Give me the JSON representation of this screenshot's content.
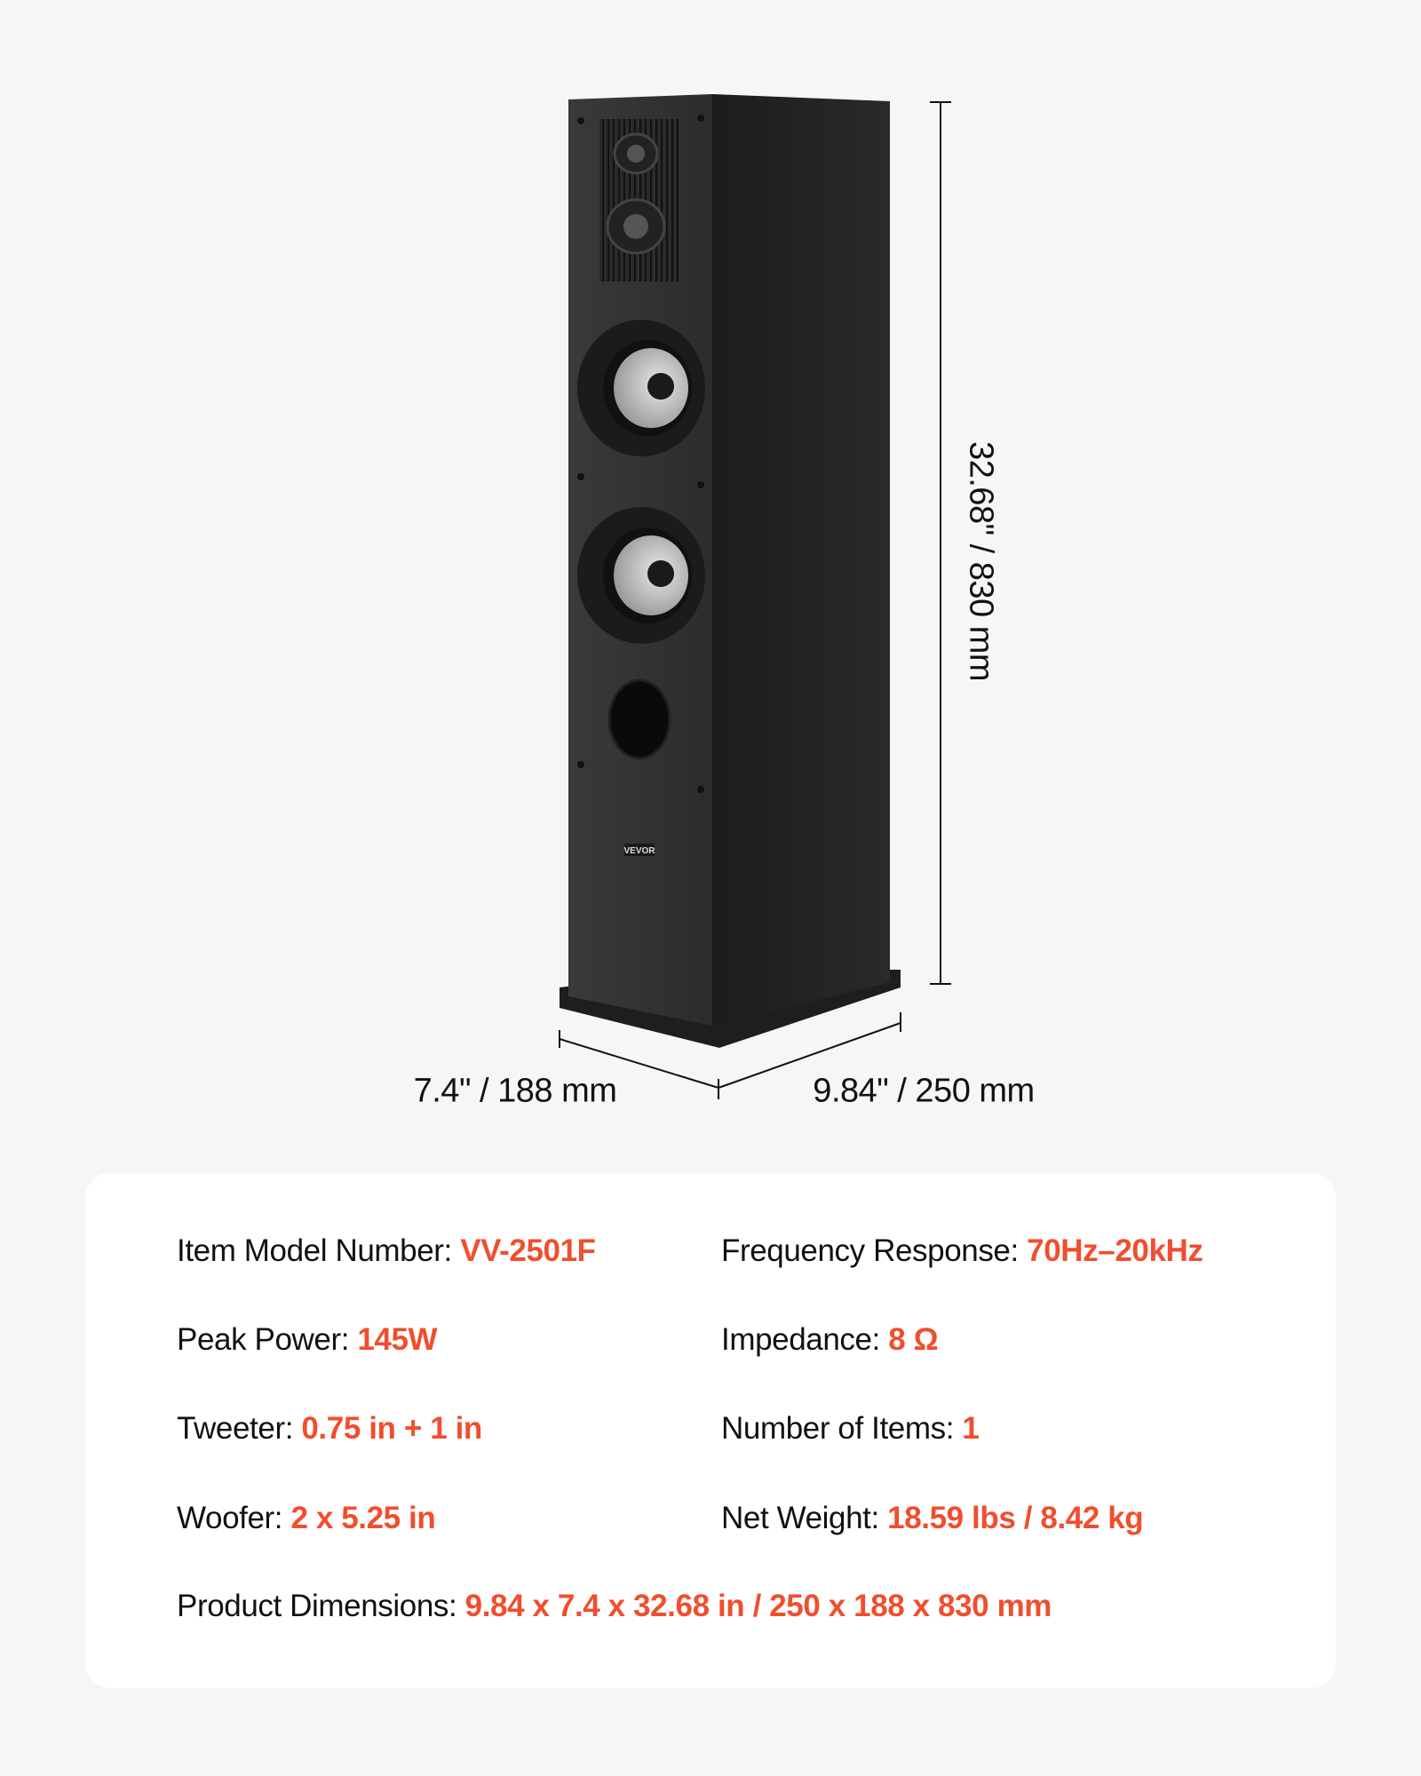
{
  "dimensions": {
    "height": "32.68\" / 830 mm",
    "depth": "7.4\" / 188 mm",
    "width": "9.84\" / 250 mm"
  },
  "brand_logo": "VEVOR",
  "accent_color": "#f04e2e",
  "specs": [
    {
      "label": "Item Model Number: ",
      "value": "VV-2501F"
    },
    {
      "label": "Frequency Response: ",
      "value": "70Hz–20kHz"
    },
    {
      "label": "Peak Power: ",
      "value": "145W"
    },
    {
      "label": "Impedance: ",
      "value": "8 Ω"
    },
    {
      "label": "Tweeter: ",
      "value": "0.75 in + 1 in"
    },
    {
      "label": "Number of Items: ",
      "value": "1"
    },
    {
      "label": "Woofer: ",
      "value": "2 x 5.25 in"
    },
    {
      "label": "Net Weight: ",
      "value": "18.59 lbs / 8.42 kg"
    },
    {
      "label": "Product Dimensions: ",
      "value": "9.84 x 7.4 x 32.68 in / 250 x 188 x 830 mm"
    }
  ]
}
